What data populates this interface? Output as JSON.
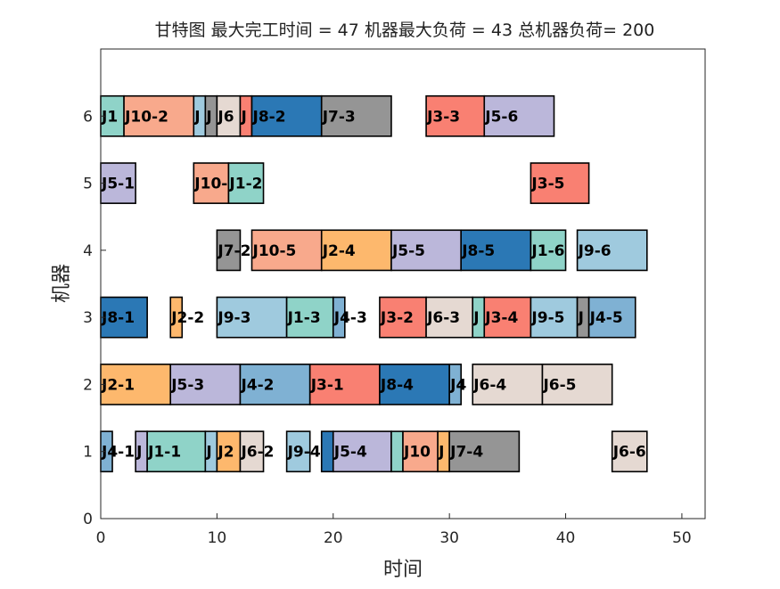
{
  "chart_data": {
    "type": "gantt",
    "title": "甘特图 最大完工时间 = 47 机器最大负荷 = 43 总机器负荷= 200",
    "xlabel": "时间",
    "ylabel": "机器",
    "xlim": [
      0,
      52
    ],
    "ylim": [
      0,
      7
    ],
    "xticks": [
      "0",
      "10",
      "20",
      "30",
      "40",
      "50"
    ],
    "yticks": [
      "0",
      "1",
      "2",
      "3",
      "4",
      "5",
      "6"
    ],
    "grid": false,
    "job_colors": {
      "J1": "#8fd3c8",
      "J2": "#fdb86d",
      "J3": "#f98072",
      "J4": "#7fb1d3",
      "J5": "#bbb7da",
      "J6": "#e5d9d2",
      "J7": "#959595",
      "J8": "#2b78b5",
      "J9": "#9fcade",
      "J10": "#f8a98c"
    },
    "operations": [
      {
        "machine": 6,
        "start": 0,
        "end": 2,
        "job": "J1",
        "label": "J1"
      },
      {
        "machine": 6,
        "start": 2,
        "end": 8,
        "job": "J10",
        "label": "J10-2"
      },
      {
        "machine": 6,
        "start": 8,
        "end": 9,
        "job": "J9",
        "label": "J"
      },
      {
        "machine": 6,
        "start": 9,
        "end": 10,
        "job": "J7",
        "label": "J"
      },
      {
        "machine": 6,
        "start": 10,
        "end": 12,
        "job": "J6",
        "label": "J6"
      },
      {
        "machine": 6,
        "start": 12,
        "end": 13,
        "job": "J3",
        "label": "J"
      },
      {
        "machine": 6,
        "start": 13,
        "end": 19,
        "job": "J8",
        "label": "J8-2"
      },
      {
        "machine": 6,
        "start": 19,
        "end": 25,
        "job": "J7",
        "label": "J7-3"
      },
      {
        "machine": 6,
        "start": 28,
        "end": 33,
        "job": "J3",
        "label": "J3-3"
      },
      {
        "machine": 6,
        "start": 33,
        "end": 39,
        "job": "J5",
        "label": "J5-6"
      },
      {
        "machine": 5,
        "start": 0,
        "end": 3,
        "job": "J5",
        "label": "J5-1"
      },
      {
        "machine": 5,
        "start": 8,
        "end": 11,
        "job": "J10",
        "label": "J10-"
      },
      {
        "machine": 5,
        "start": 11,
        "end": 14,
        "job": "J1",
        "label": "J1-2"
      },
      {
        "machine": 5,
        "start": 37,
        "end": 42,
        "job": "J3",
        "label": "J3-5"
      },
      {
        "machine": 4,
        "start": 10,
        "end": 12,
        "job": "J7",
        "label": "J7-2"
      },
      {
        "machine": 4,
        "start": 13,
        "end": 19,
        "job": "J10",
        "label": "J10-5"
      },
      {
        "machine": 4,
        "start": 19,
        "end": 25,
        "job": "J2",
        "label": "J2-4"
      },
      {
        "machine": 4,
        "start": 25,
        "end": 31,
        "job": "J5",
        "label": "J5-5"
      },
      {
        "machine": 4,
        "start": 31,
        "end": 37,
        "job": "J8",
        "label": "J8-5"
      },
      {
        "machine": 4,
        "start": 37,
        "end": 40,
        "job": "J1",
        "label": "J1-6"
      },
      {
        "machine": 4,
        "start": 41,
        "end": 47,
        "job": "J9",
        "label": "J9-6"
      },
      {
        "machine": 3,
        "start": 0,
        "end": 4,
        "job": "J8",
        "label": "J8-1"
      },
      {
        "machine": 3,
        "start": 6,
        "end": 7,
        "job": "J2",
        "label": "J2-2"
      },
      {
        "machine": 3,
        "start": 10,
        "end": 16,
        "job": "J9",
        "label": "J9-3"
      },
      {
        "machine": 3,
        "start": 16,
        "end": 20,
        "job": "J1",
        "label": "J1-3"
      },
      {
        "machine": 3,
        "start": 20,
        "end": 21,
        "job": "J4",
        "label": "J4-3"
      },
      {
        "machine": 3,
        "start": 24,
        "end": 28,
        "job": "J3",
        "label": "J3-2"
      },
      {
        "machine": 3,
        "start": 28,
        "end": 32,
        "job": "J6",
        "label": "J6-3"
      },
      {
        "machine": 3,
        "start": 32,
        "end": 33,
        "job": "J1",
        "label": "J"
      },
      {
        "machine": 3,
        "start": 33,
        "end": 37,
        "job": "J3",
        "label": "J3-4"
      },
      {
        "machine": 3,
        "start": 37,
        "end": 41,
        "job": "J9",
        "label": "J9-5"
      },
      {
        "machine": 3,
        "start": 41,
        "end": 42,
        "job": "J7",
        "label": "J"
      },
      {
        "machine": 3,
        "start": 42,
        "end": 46,
        "job": "J4",
        "label": "J4-5"
      },
      {
        "machine": 2,
        "start": 0,
        "end": 6,
        "job": "J2",
        "label": "J2-1"
      },
      {
        "machine": 2,
        "start": 6,
        "end": 12,
        "job": "J5",
        "label": "J5-3"
      },
      {
        "machine": 2,
        "start": 12,
        "end": 18,
        "job": "J4",
        "label": "J4-2"
      },
      {
        "machine": 2,
        "start": 18,
        "end": 24,
        "job": "J3",
        "label": "J3-1"
      },
      {
        "machine": 2,
        "start": 24,
        "end": 30,
        "job": "J8",
        "label": "J8-4"
      },
      {
        "machine": 2,
        "start": 30,
        "end": 31,
        "job": "J4",
        "label": "J4"
      },
      {
        "machine": 2,
        "start": 32,
        "end": 38,
        "job": "J6",
        "label": "J6-4"
      },
      {
        "machine": 2,
        "start": 38,
        "end": 44,
        "job": "J6",
        "label": "J6-5"
      },
      {
        "machine": 1,
        "start": 0,
        "end": 1,
        "job": "J4",
        "label": "J4-1"
      },
      {
        "machine": 1,
        "start": 3,
        "end": 4,
        "job": "J5",
        "label": "J"
      },
      {
        "machine": 1,
        "start": 4,
        "end": 9,
        "job": "J1",
        "label": "J1-1"
      },
      {
        "machine": 1,
        "start": 9,
        "end": 10,
        "job": "J9",
        "label": "J"
      },
      {
        "machine": 1,
        "start": 10,
        "end": 12,
        "job": "J2",
        "label": "J2"
      },
      {
        "machine": 1,
        "start": 12,
        "end": 14,
        "job": "J6",
        "label": "J6-2"
      },
      {
        "machine": 1,
        "start": 16,
        "end": 18,
        "job": "J9",
        "label": "J9-4"
      },
      {
        "machine": 1,
        "start": 19,
        "end": 20,
        "job": "J8",
        "label": ""
      },
      {
        "machine": 1,
        "start": 20,
        "end": 25,
        "job": "J5",
        "label": "J5-4"
      },
      {
        "machine": 1,
        "start": 25,
        "end": 26,
        "job": "J1",
        "label": ""
      },
      {
        "machine": 1,
        "start": 26,
        "end": 29,
        "job": "J10",
        "label": "J10"
      },
      {
        "machine": 1,
        "start": 29,
        "end": 30,
        "job": "J2",
        "label": "J"
      },
      {
        "machine": 1,
        "start": 30,
        "end": 36,
        "job": "J7",
        "label": "J7-4"
      },
      {
        "machine": 1,
        "start": 44,
        "end": 47,
        "job": "J6",
        "label": "J6-6"
      }
    ]
  }
}
